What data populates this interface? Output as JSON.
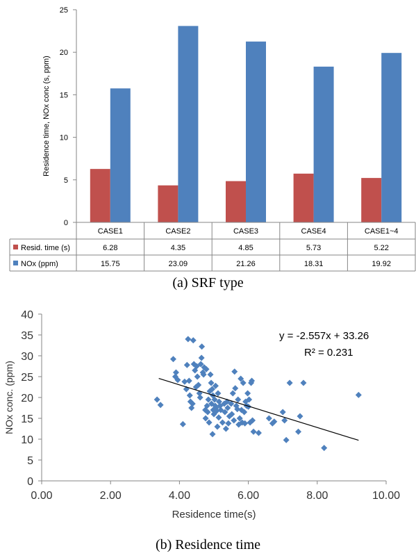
{
  "chart_data": [
    {
      "type": "bar",
      "ylabel": "Residence time, NOx conc (s, ppm)",
      "ylim": [
        0,
        25
      ],
      "yticks": [
        0,
        5,
        10,
        15,
        20,
        25
      ],
      "categories": [
        "CASE1",
        "CASE2",
        "CASE3",
        "CASE4",
        "CASE1~4"
      ],
      "series": [
        {
          "name": "Resid. time (s)",
          "color": "#c0504d",
          "values": [
            6.28,
            4.35,
            4.85,
            5.73,
            5.22
          ],
          "labels": [
            "6.28",
            "4.35",
            "4.85",
            "5.73",
            "5.22"
          ]
        },
        {
          "name": "NOx (ppm)",
          "color": "#4f81bd",
          "values": [
            15.75,
            23.09,
            21.26,
            18.31,
            19.92
          ],
          "labels": [
            "15.75",
            "23.09",
            "21.26",
            "18.31",
            "19.92"
          ]
        }
      ],
      "data_table": true,
      "grid": false
    },
    {
      "type": "scatter",
      "xlabel": "Residence time(s)",
      "ylabel": "NOx conc. (ppm)",
      "xlim": [
        0,
        10
      ],
      "ylim": [
        0,
        40
      ],
      "xticks": [
        "0.00",
        "2.00",
        "4.00",
        "6.00",
        "8.00",
        "10.00"
      ],
      "yticks": [
        "0",
        "5",
        "10",
        "15",
        "20",
        "25",
        "30",
        "35",
        "40"
      ],
      "color": "#4f81bd",
      "marker": "diamond",
      "grid": false,
      "trendline": {
        "slope": -2.557,
        "intercept": 33.26,
        "x_range": [
          3.4,
          9.2
        ]
      },
      "annotation": {
        "equation": "y = -2.557x + 33.26",
        "r2": "R² = 0.231"
      },
      "points": [
        [
          3.35,
          19.5
        ],
        [
          3.45,
          18.2
        ],
        [
          3.82,
          29.2
        ],
        [
          3.88,
          25.0
        ],
        [
          3.9,
          26.0
        ],
        [
          3.95,
          24.2
        ],
        [
          4.1,
          13.6
        ],
        [
          4.15,
          23.8
        ],
        [
          4.2,
          22.0
        ],
        [
          4.22,
          27.8
        ],
        [
          4.25,
          34.0
        ],
        [
          4.28,
          24.0
        ],
        [
          4.3,
          20.5
        ],
        [
          4.32,
          19.0
        ],
        [
          4.35,
          17.5
        ],
        [
          4.38,
          18.5
        ],
        [
          4.4,
          33.7
        ],
        [
          4.42,
          28.0
        ],
        [
          4.45,
          26.5
        ],
        [
          4.48,
          22.5
        ],
        [
          4.5,
          27.5
        ],
        [
          4.52,
          25.0
        ],
        [
          4.55,
          23.0
        ],
        [
          4.58,
          21.0
        ],
        [
          4.6,
          20.0
        ],
        [
          4.62,
          28.0
        ],
        [
          4.64,
          29.5
        ],
        [
          4.65,
          32.2
        ],
        [
          4.68,
          26.0
        ],
        [
          4.7,
          25.5
        ],
        [
          4.72,
          27.2
        ],
        [
          4.75,
          17.0
        ],
        [
          4.76,
          15.0
        ],
        [
          4.78,
          26.8
        ],
        [
          4.8,
          18.0
        ],
        [
          4.82,
          16.5
        ],
        [
          4.84,
          19.5
        ],
        [
          4.86,
          14.0
        ],
        [
          4.88,
          21.5
        ],
        [
          4.9,
          25.5
        ],
        [
          4.92,
          23.5
        ],
        [
          4.93,
          18.5
        ],
        [
          4.95,
          22.0
        ],
        [
          4.96,
          11.2
        ],
        [
          4.97,
          20.5
        ],
        [
          4.98,
          17.0
        ],
        [
          5.0,
          16.0
        ],
        [
          5.02,
          19.5
        ],
        [
          5.04,
          18.0
        ],
        [
          5.05,
          22.8
        ],
        [
          5.06,
          17.5
        ],
        [
          5.08,
          16.8
        ],
        [
          5.1,
          13.0
        ],
        [
          5.12,
          21.0
        ],
        [
          5.14,
          15.2
        ],
        [
          5.15,
          19.0
        ],
        [
          5.18,
          18.0
        ],
        [
          5.2,
          17.0
        ],
        [
          5.25,
          14.0
        ],
        [
          5.3,
          18.5
        ],
        [
          5.32,
          16.5
        ],
        [
          5.35,
          12.5
        ],
        [
          5.38,
          19.0
        ],
        [
          5.4,
          17.5
        ],
        [
          5.42,
          13.8
        ],
        [
          5.45,
          15.5
        ],
        [
          5.5,
          18.5
        ],
        [
          5.52,
          16.0
        ],
        [
          5.55,
          21.0
        ],
        [
          5.58,
          14.5
        ],
        [
          5.6,
          26.2
        ],
        [
          5.62,
          22.2
        ],
        [
          5.65,
          18.0
        ],
        [
          5.68,
          17.2
        ],
        [
          5.7,
          19.5
        ],
        [
          5.72,
          13.5
        ],
        [
          5.75,
          15.0
        ],
        [
          5.78,
          24.5
        ],
        [
          5.8,
          17.0
        ],
        [
          5.82,
          14.0
        ],
        [
          5.85,
          23.5
        ],
        [
          5.88,
          16.5
        ],
        [
          5.9,
          13.8
        ],
        [
          5.92,
          19.0
        ],
        [
          5.95,
          18.0
        ],
        [
          5.98,
          21.0
        ],
        [
          6.0,
          17.8
        ],
        [
          6.02,
          19.5
        ],
        [
          6.05,
          14.0
        ],
        [
          6.08,
          23.5
        ],
        [
          6.1,
          24.0
        ],
        [
          6.12,
          14.5
        ],
        [
          6.15,
          11.8
        ],
        [
          6.3,
          11.5
        ],
        [
          6.6,
          15.0
        ],
        [
          6.7,
          13.8
        ],
        [
          6.75,
          14.2
        ],
        [
          7.0,
          16.5
        ],
        [
          7.05,
          14.5
        ],
        [
          7.1,
          9.8
        ],
        [
          7.2,
          23.5
        ],
        [
          7.45,
          11.8
        ],
        [
          7.5,
          15.5
        ],
        [
          7.6,
          23.5
        ],
        [
          8.2,
          7.9
        ],
        [
          9.2,
          20.6
        ]
      ]
    }
  ],
  "captions": {
    "a": "(a) SRF type",
    "b": "(b) Residence time"
  }
}
